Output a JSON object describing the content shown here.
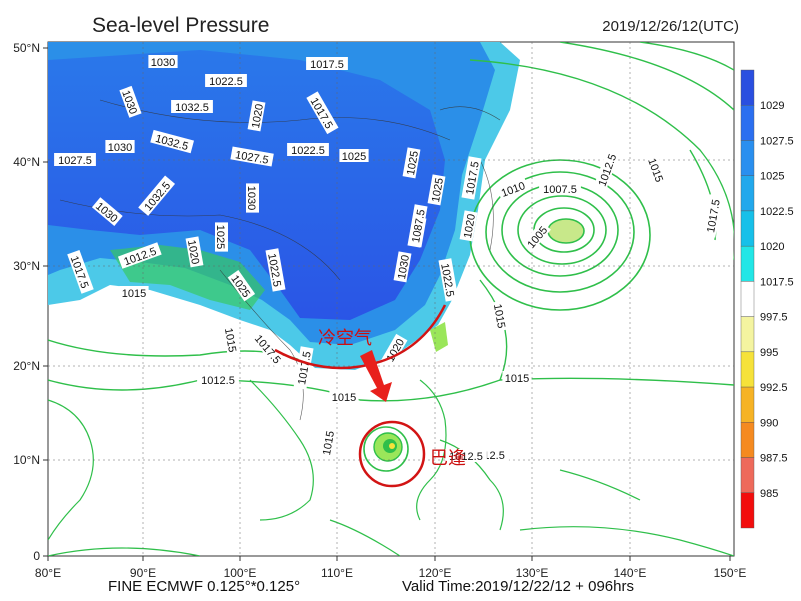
{
  "title": "Sea-level Pressure",
  "valid_datetime": "2019/12/26/12(UTC)",
  "footer": {
    "model": "FINE ECMWF 0.125°*0.125°",
    "valid_time": "Valid Time:2019/12/22/12 + 096hrs"
  },
  "axes": {
    "lon_ticks": [
      "80°E",
      "90°E",
      "100°E",
      "110°E",
      "120°E",
      "130°E",
      "140°E",
      "150°E"
    ],
    "lat_ticks": [
      "50°N",
      "40°N",
      "30°N",
      "20°N",
      "10°N",
      "0"
    ]
  },
  "colorbar": {
    "labels": [
      "1029",
      "1027.5",
      "1025",
      "1022.5",
      "1020",
      "1017.5",
      "997.5",
      "995",
      "992.5",
      "990",
      "987.5",
      "985"
    ],
    "colors": [
      "#2a4fe0",
      "#2b6ff0",
      "#2a8fef",
      "#22a8ec",
      "#17c0e9",
      "#22e6e6",
      "#ffffff",
      "#f4f4a0",
      "#f6e23a",
      "#f6b325",
      "#f58a20",
      "#ee6a5b",
      "#f20d0d"
    ]
  },
  "isobar_labels": [
    "1030",
    "1022.5",
    "1017.5",
    "1030",
    "1032.5",
    "1020",
    "1017.5",
    "1030",
    "1032.5",
    "1027.5",
    "1022.5",
    "1025",
    "1027.5",
    "1025",
    "1025",
    "1017.5",
    "1030",
    "1032.5",
    "1030",
    "1025",
    "1030",
    "1020",
    "1012.5",
    "1020",
    "1025",
    "1022.5",
    "1030",
    "1022.5",
    "1087.5",
    "1017.5",
    "1015",
    "1017.5",
    "1015",
    "1015",
    "1015",
    "1012.5",
    "1017.5",
    "1015",
    "1020",
    "1015",
    "1012.5",
    "1012.5",
    "1010",
    "1007.5",
    "1012.5",
    "1005",
    "1015",
    "1017.5"
  ],
  "annotations": {
    "cold_air": "冷空气",
    "typhoon": "巴逢"
  },
  "colors": {
    "cold_high": "#2a55e6",
    "land_contour": "#2fbf4a",
    "annotation_red": "#d21414"
  }
}
